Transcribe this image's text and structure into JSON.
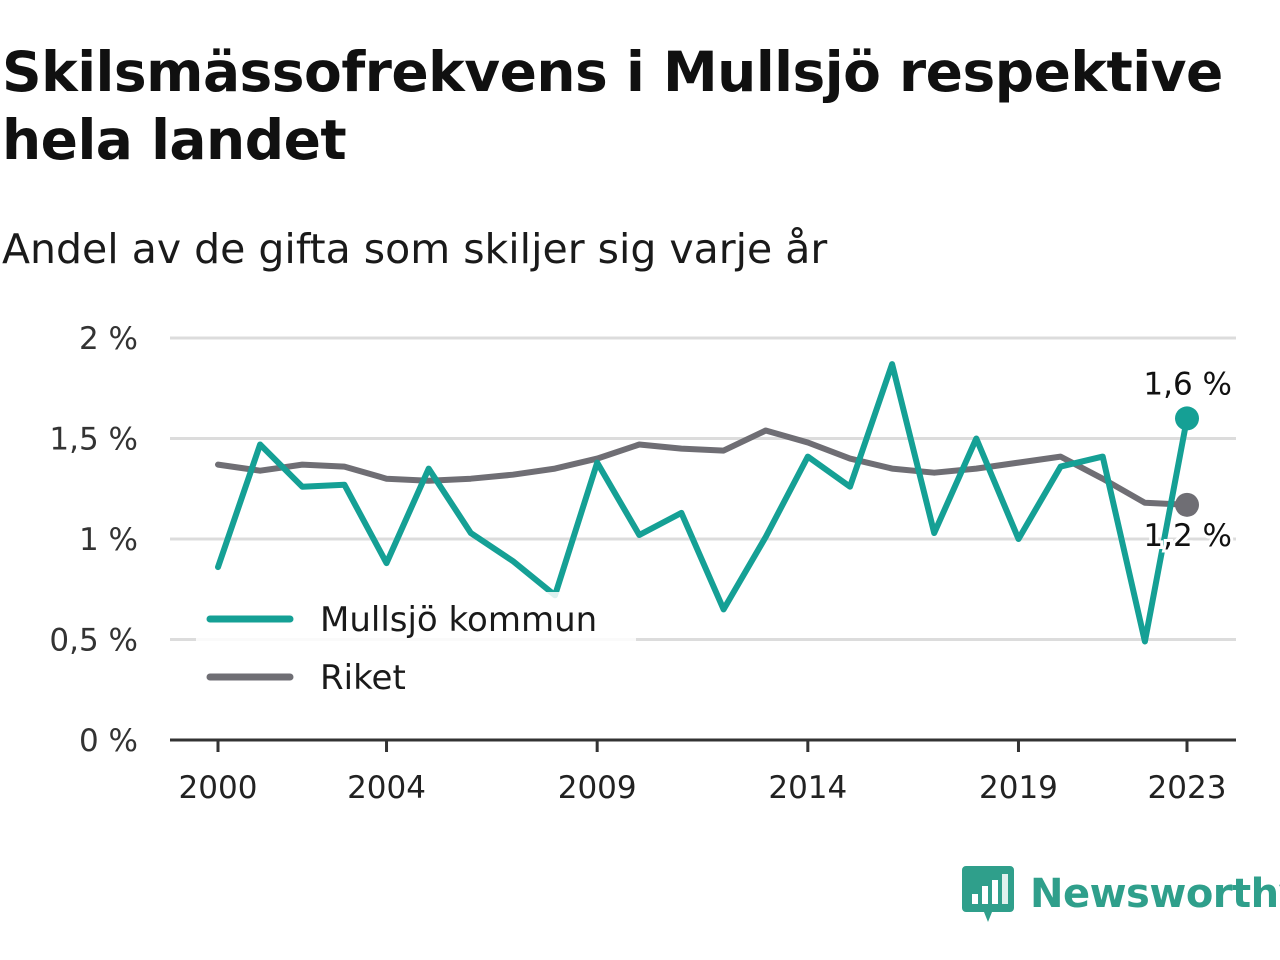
{
  "title": "Skilsmässofrekvens i Mullsjö respektive hela landet",
  "subtitle": "Andel av de gifta som skiljer sig varje år",
  "brand": {
    "name": "Newsworthy",
    "color": "#2f9f8b",
    "icon": "newsworthy-logo-icon"
  },
  "chart_data": {
    "type": "line",
    "x": [
      2000,
      2001,
      2002,
      2003,
      2004,
      2005,
      2006,
      2007,
      2008,
      2009,
      2010,
      2011,
      2012,
      2013,
      2014,
      2015,
      2016,
      2017,
      2018,
      2019,
      2020,
      2021,
      2022,
      2023
    ],
    "x_ticks": [
      2000,
      2004,
      2009,
      2014,
      2019,
      2023
    ],
    "x_tick_labels": [
      "2000",
      "2004",
      "2009",
      "2014",
      "2019",
      "2023"
    ],
    "y_ticks": [
      0,
      0.5,
      1,
      1.5,
      2
    ],
    "y_tick_labels": [
      "0 %",
      "0,5 %",
      "1 %",
      "1,5 %",
      "2 %"
    ],
    "ylim": [
      0,
      2
    ],
    "grid": true,
    "legend_position": "bottom-left",
    "series": [
      {
        "name": "Mullsjö kommun",
        "color": "#15a095",
        "values": [
          0.86,
          1.47,
          1.26,
          1.27,
          0.88,
          1.35,
          1.03,
          0.89,
          0.72,
          1.38,
          1.02,
          1.13,
          0.65,
          1.01,
          1.41,
          1.26,
          1.87,
          1.03,
          1.5,
          1.0,
          1.36,
          1.41,
          0.49,
          1.6
        ],
        "end_label": "1,6 %"
      },
      {
        "name": "Riket",
        "color": "#6f6e74",
        "values": [
          1.37,
          1.34,
          1.37,
          1.36,
          1.3,
          1.29,
          1.3,
          1.32,
          1.35,
          1.4,
          1.47,
          1.45,
          1.44,
          1.54,
          1.48,
          1.4,
          1.35,
          1.33,
          1.35,
          1.38,
          1.41,
          1.3,
          1.18,
          1.17
        ],
        "end_label": "1,2 %"
      }
    ]
  }
}
